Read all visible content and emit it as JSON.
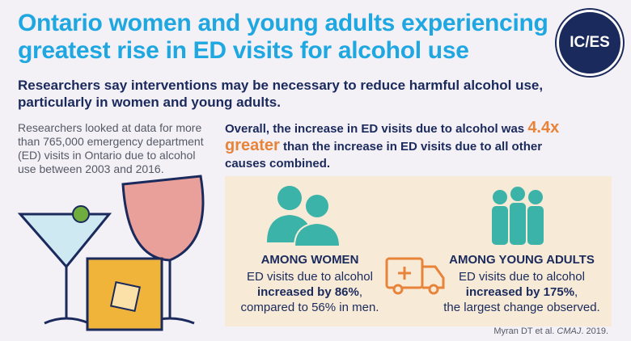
{
  "header": {
    "title": "Ontario women and young adults experiencing greatest rise in ED visits for alcohol use",
    "logo": "IC/ES"
  },
  "subtitle": "Researchers say interventions may be necessary to reduce harmful alcohol use, particularly in women and young adults.",
  "intro": "Researchers looked at data for more than 765,000 emergency department (ED) visits in Ontario due to alcohol use between 2003 and 2016.",
  "overall": {
    "before": "Overall, the increase in ED visits due to alcohol was",
    "highlight": "4.4x greater",
    "after": "than the increase in ED visits due to all other causes combined."
  },
  "women": {
    "heading": "AMONG WOMEN",
    "line1": "ED visits due to alcohol",
    "line2_bold": "increased by 86%",
    "line2_rest": ",",
    "line3": "compared to 56% in men."
  },
  "young_adults": {
    "heading": "AMONG YOUNG ADULTS",
    "line1": "ED visits due to alcohol",
    "line2_bold": "increased by 175%",
    "line2_rest": ",",
    "line3": "the largest change observed."
  },
  "citation": {
    "authors": "Myran DT et al.",
    "journal": "CMAJ",
    "year": ". 2019."
  }
}
